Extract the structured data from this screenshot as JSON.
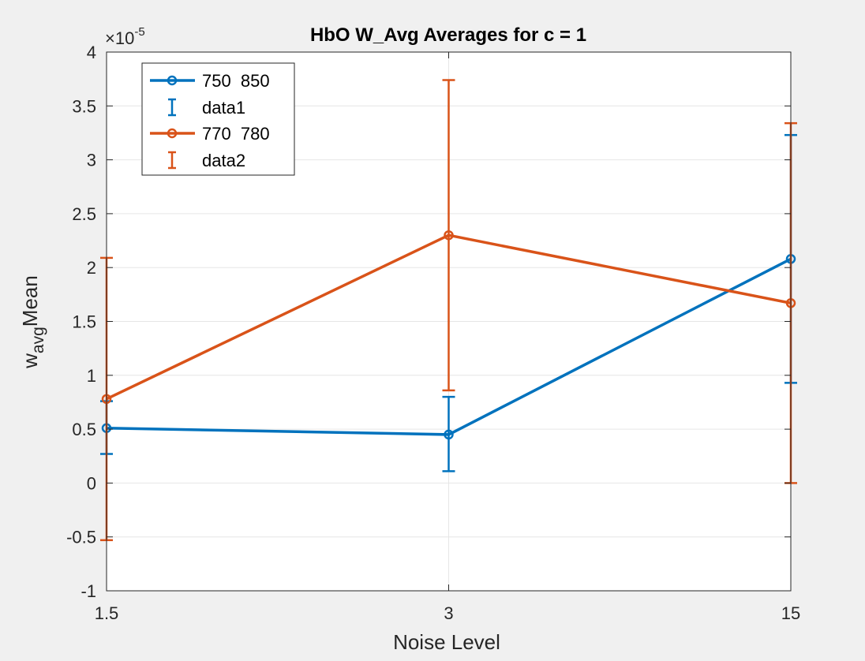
{
  "chart_data": {
    "type": "line",
    "title": "HbO W_Avg Averages for c = 1",
    "xlabel": "Noise Level",
    "ylabel_main": "w",
    "ylabel_sub": "avg",
    "ylabel_rest": "Mean",
    "exponent_base": "×10",
    "exponent_power": "-5",
    "categories": [
      "1.5",
      "3",
      "15"
    ],
    "ylim": [
      -1,
      4
    ],
    "yticks": [
      -1,
      -0.5,
      0,
      0.5,
      1,
      1.5,
      2,
      2.5,
      3,
      3.5,
      4
    ],
    "ytick_labels": [
      "-1",
      "-0.5",
      "0",
      "0.5",
      "1",
      "1.5",
      "2",
      "2.5",
      "3",
      "3.5",
      "4"
    ],
    "grid": true,
    "legend_position": "top-left",
    "legend": [
      "750  850",
      "data1",
      "770  780",
      "data2"
    ],
    "series": [
      {
        "name": "750  850",
        "error_name": "data1",
        "color": "#0072BD",
        "values": [
          0.51,
          0.45,
          2.08
        ],
        "err_low": [
          0.27,
          0.11,
          0.93
        ],
        "err_high": [
          0.76,
          0.8,
          3.23
        ]
      },
      {
        "name": "770  780",
        "error_name": "data2",
        "color": "#D95319",
        "values": [
          0.78,
          2.3,
          1.67
        ],
        "err_low": [
          -0.53,
          0.86,
          0.0
        ],
        "err_high": [
          2.09,
          3.74,
          3.34
        ]
      }
    ]
  }
}
